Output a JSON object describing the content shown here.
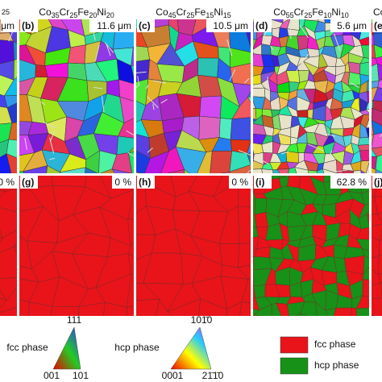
{
  "columns": [
    {
      "header": [
        {
          "sub": "25"
        }
      ],
      "top": {
        "size": "μm"
      },
      "bottom": {
        "fraction": "0 %"
      }
    },
    {
      "header": [
        {
          "el": "Co",
          "sub": "35"
        },
        {
          "el": "Cr",
          "sub": "25"
        },
        {
          "el": "Fe",
          "sub": "20"
        },
        {
          "el": "Ni",
          "sub": "20"
        }
      ],
      "top": {
        "label": "(b)",
        "size": "11.6 μm"
      },
      "bottom": {
        "label": "(g)",
        "fraction": "0 %"
      }
    },
    {
      "header": [
        {
          "el": "Co",
          "sub": "45"
        },
        {
          "el": "Cr",
          "sub": "25"
        },
        {
          "el": "Fe",
          "sub": "15"
        },
        {
          "el": "Ni",
          "sub": "15"
        }
      ],
      "top": {
        "label": "(c)",
        "size": "10.5 μm"
      },
      "bottom": {
        "label": "(h)",
        "fraction": "0 %"
      }
    },
    {
      "header": [
        {
          "el": "Co",
          "sub": "55"
        },
        {
          "el": "Cr",
          "sub": "25"
        },
        {
          "el": "Fe",
          "sub": "10"
        },
        {
          "el": "Ni",
          "sub": "10"
        }
      ],
      "top": {
        "label": "(d)",
        "size": "5.6 μm"
      },
      "bottom": {
        "label": "(i)",
        "fraction": "62.8 %"
      }
    },
    {
      "header": [
        {
          "el": "Co"
        }
      ],
      "top": {
        "label": "(e)"
      },
      "bottom": {
        "label": "(j)"
      }
    }
  ],
  "legend": {
    "fcc_ipf": {
      "label": "fcc phase",
      "corners": [
        "111",
        "001",
        "101"
      ]
    },
    "hcp_ipf": {
      "label": "hcp phase",
      "corners": [
        "101̄0",
        "0001",
        "21̄1̄0"
      ]
    },
    "phases": [
      {
        "name": "fcc phase",
        "color": "#e8141a"
      },
      {
        "name": "hcp phase",
        "color": "#179117"
      }
    ]
  }
}
